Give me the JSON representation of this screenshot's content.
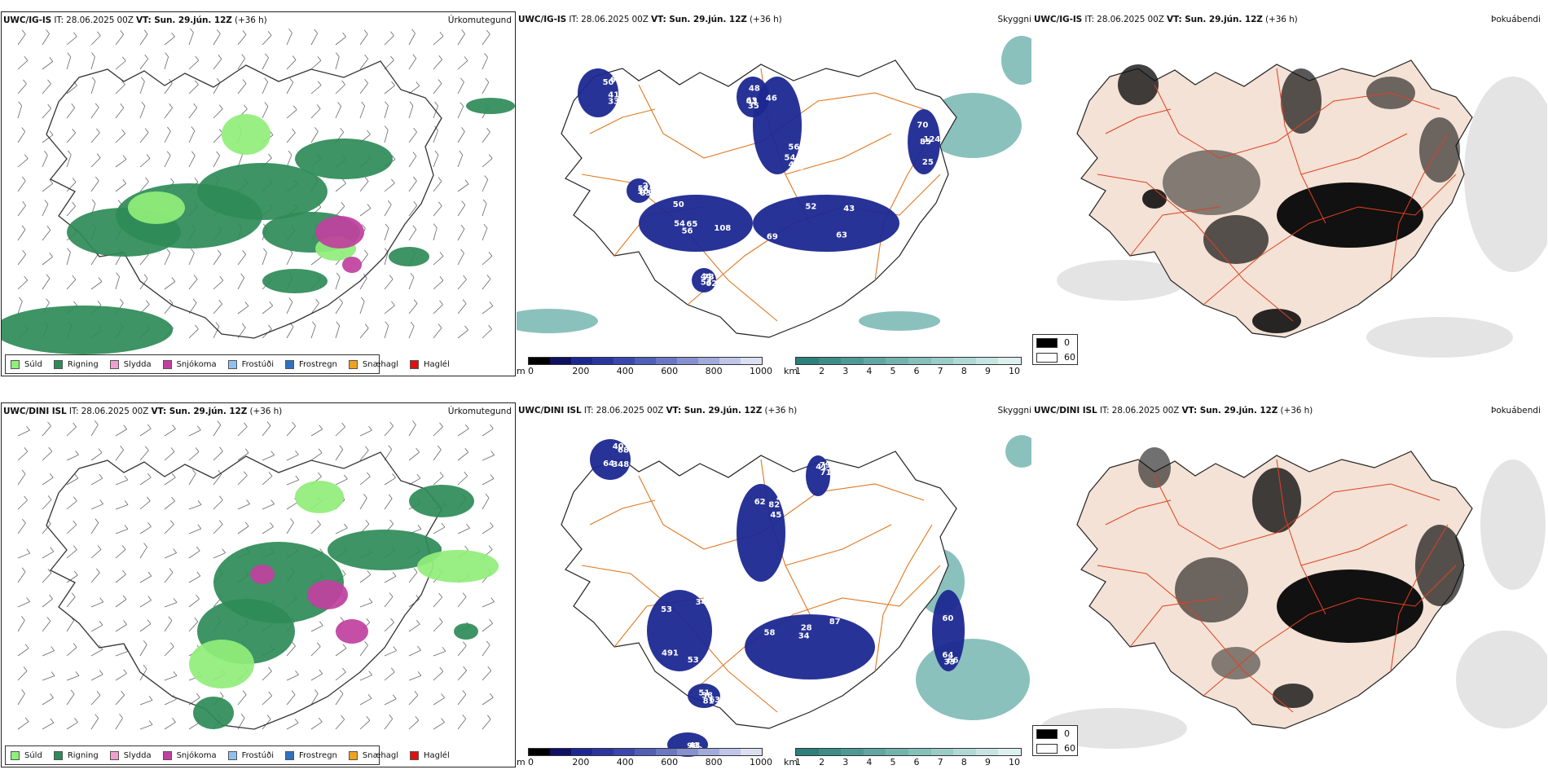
{
  "panels": {
    "tl": {
      "model": "UWC/IG-IS",
      "run": " IT: 28.06.2025 00Z ",
      "vt_label": "VT:",
      "vt": " Sun. 29.jún. 12Z",
      "lead": " (+36 h)",
      "product": "Úrkomutegund"
    },
    "tm": {
      "model": "UWC/IG-IS",
      "run": " IT: 28.06.2025 00Z ",
      "vt_label": "VT:",
      "vt": " Sun. 29.jún. 12Z",
      "lead": " (+36 h)",
      "product": "Skyggni"
    },
    "tr": {
      "model": "UWC/IG-IS",
      "run": " IT: 28.06.2025 00Z ",
      "vt_label": "VT:",
      "vt": " Sun. 29.jún. 12Z",
      "lead": " (+36 h)",
      "product": "Þokuábendi"
    },
    "bl": {
      "model": "UWC/DINI ISL",
      "run": " IT: 28.06.2025 00Z ",
      "vt_label": "VT:",
      "vt": " Sun. 29.jún. 12Z",
      "lead": " (+36 h)",
      "product": "Úrkomutegund"
    },
    "bm": {
      "model": "UWC/DINI ISL",
      "run": " IT: 28.06.2025 00Z ",
      "vt_label": "VT:",
      "vt": " Sun. 29.jún. 12Z",
      "lead": " (+36 h)",
      "product": "Skyggni"
    },
    "br": {
      "model": "UWC/DINI ISL",
      "run": " IT: 28.06.2025 00Z ",
      "vt_label": "VT:",
      "vt": " Sun. 29.jún. 12Z",
      "lead": " (+36 h)",
      "product": "Þokuábendi"
    }
  },
  "precip_legend": [
    {
      "label": "Súld",
      "color": "#90ee7a"
    },
    {
      "label": "Rigning",
      "color": "#2e8b57"
    },
    {
      "label": "Slydda",
      "color": "#f0a0d0"
    },
    {
      "label": "Snjókoma",
      "color": "#c040a0"
    },
    {
      "label": "Frostúði",
      "color": "#90c0f0"
    },
    {
      "label": "Frostregn",
      "color": "#3070c0"
    },
    {
      "label": "Snæhagl",
      "color": "#f0a020"
    },
    {
      "label": "Haglél",
      "color": "#e01010"
    }
  ],
  "ceiling_bar": {
    "unit": "m",
    "ticks": [
      "0",
      "200",
      "400",
      "600",
      "800",
      "1000"
    ]
  },
  "vis_bar": {
    "unit": "km",
    "ticks": [
      "1",
      "2",
      "3",
      "4",
      "5",
      "6",
      "7",
      "8",
      "9",
      "10"
    ]
  },
  "fog_legend": {
    "low": "0",
    "high": "60"
  },
  "ceiling_labels_top": [
    "56",
    "108",
    "69",
    "64",
    "124",
    "73",
    "57",
    "48",
    "46",
    "54",
    "52",
    "50",
    "70",
    "53",
    "103",
    "63",
    "46",
    "65",
    "43",
    "41",
    "85",
    "44",
    "83",
    "35",
    "54",
    "56",
    "63",
    "33",
    "25",
    "62",
    "27",
    "43",
    "60",
    "50"
  ],
  "ceiling_labels_bottom": [
    "45",
    "53",
    "58",
    "68",
    "64",
    "63",
    "98",
    "79",
    "82",
    "491",
    "87",
    "64",
    "60",
    "81",
    "43",
    "71",
    "62",
    "53",
    "34",
    "40",
    "33",
    "38",
    "29",
    "41",
    "40",
    "34",
    "28",
    "348",
    "66",
    "51"
  ],
  "colors": {
    "rain": "#2e8b57",
    "drizzle": "#90ee7a",
    "snow": "#c040a0",
    "ceiling": "#1c2891",
    "vis": "#5aa6a0",
    "road": "#e07820",
    "land": "#f3e2d5",
    "fogdark": "#111111"
  }
}
